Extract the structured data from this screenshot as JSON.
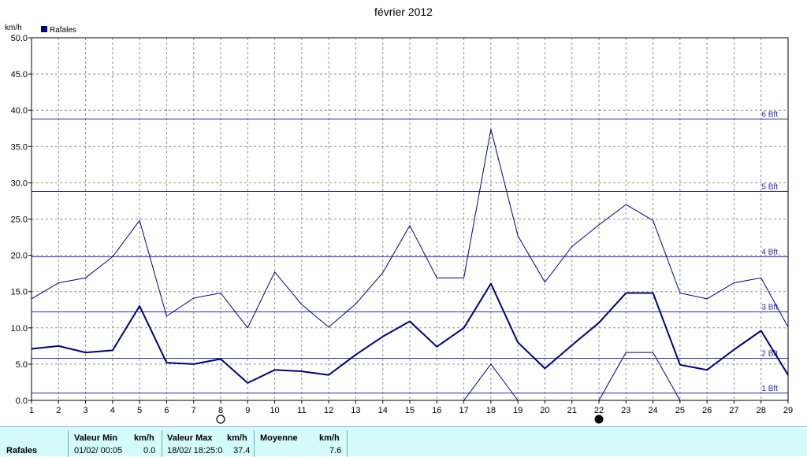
{
  "chart_data": {
    "type": "line",
    "title": "février 2012",
    "ylabel": "km/h",
    "xlabel": "",
    "x": [
      1,
      2,
      3,
      4,
      5,
      6,
      7,
      8,
      9,
      10,
      11,
      12,
      13,
      14,
      15,
      16,
      17,
      18,
      19,
      20,
      21,
      22,
      23,
      24,
      25,
      26,
      27,
      28,
      29
    ],
    "xlim": [
      1,
      29
    ],
    "ylim": [
      0,
      50
    ],
    "yticks": [
      "0.0",
      "5.0",
      "10.0",
      "15.0",
      "20.0",
      "25.0",
      "30.0",
      "35.0",
      "40.0",
      "45.0",
      "50.0"
    ],
    "grid": true,
    "legend": "top-left",
    "series": [
      {
        "name": "Rafales",
        "role": "mean",
        "color": "#000080",
        "values": [
          7.1,
          7.5,
          6.6,
          6.9,
          13.0,
          5.2,
          5.0,
          5.7,
          2.4,
          4.2,
          4.0,
          3.5,
          6.3,
          8.8,
          10.9,
          7.4,
          10.0,
          16.1,
          8.0,
          4.4,
          7.6,
          10.7,
          14.8,
          14.8,
          4.9,
          4.2,
          7.0,
          9.6,
          3.5
        ]
      },
      {
        "name": "",
        "role": "max",
        "color": "#000080",
        "values": [
          14.0,
          16.2,
          16.9,
          19.8,
          24.8,
          11.6,
          14.1,
          14.8,
          10.0,
          17.7,
          13.2,
          10.1,
          13.3,
          17.6,
          24.1,
          16.9,
          16.9,
          37.4,
          22.7,
          16.3,
          21.2,
          24.2,
          27.0,
          24.8,
          14.8,
          14.0,
          16.2,
          16.9,
          10.1
        ]
      },
      {
        "name": "",
        "role": "min",
        "color": "#000080",
        "values": [
          null,
          null,
          null,
          null,
          null,
          null,
          null,
          null,
          null,
          null,
          null,
          null,
          null,
          null,
          null,
          null,
          0.0,
          5.0,
          0.0,
          null,
          null,
          0.0,
          6.6,
          6.6,
          0.0,
          null,
          null,
          null,
          null
        ]
      }
    ],
    "beaufort_lines": [
      {
        "value": 1.0,
        "label": "1 Bft"
      },
      {
        "value": 5.8,
        "label": "2 Bft"
      },
      {
        "value": 12.2,
        "label": "3 Bft"
      },
      {
        "value": 19.8,
        "label": "4 Bft"
      },
      {
        "value": 28.8,
        "label": "5 Bft"
      },
      {
        "value": 38.8,
        "label": "6 Bft"
      }
    ],
    "moon_markers": [
      {
        "x": 8,
        "phase": "full"
      },
      {
        "x": 22,
        "phase": "new"
      }
    ]
  },
  "footer": {
    "row_label": "Rafales",
    "min_header": "Valeur Min",
    "min_unit": "km/h",
    "min_date": "01/02/  00:05",
    "min_value": "0.0",
    "max_header": "Valeur Max",
    "max_unit": "km/h",
    "max_date": "18/02/  18:25:0",
    "max_value": "37.4",
    "mean_header": "Moyenne",
    "mean_unit": "km/h",
    "mean_value": "7.6"
  }
}
